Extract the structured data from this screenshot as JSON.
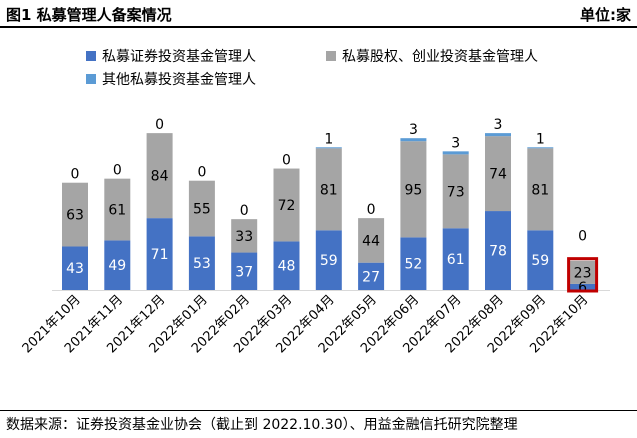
{
  "header": {
    "title": "图1 私募管理人备案情况",
    "unit": "单位:家"
  },
  "footer": {
    "source": "数据来源：证券投资基金业协会（截止到 2022.10.30）、用益金融信托研究院整理"
  },
  "colors": {
    "securities": "#4472c4",
    "equity": "#a5a5a5",
    "other": "#5b9bd5",
    "highlight": "#c00000"
  },
  "chart_data": {
    "type": "bar",
    "stacked": true,
    "categories": [
      "2021年10月",
      "2021年11月",
      "2021年12月",
      "2022年01月",
      "2022年02月",
      "2022年03月",
      "2022年04月",
      "2022年05月",
      "2022年06月",
      "2022年07月",
      "2022年08月",
      "2022年09月",
      "2022年10月"
    ],
    "series": [
      {
        "name": "私募证券投资基金管理人",
        "values": [
          43,
          49,
          71,
          53,
          37,
          48,
          59,
          27,
          52,
          61,
          78,
          59,
          6
        ]
      },
      {
        "name": "私募股权、创业投资基金管理人",
        "values": [
          63,
          61,
          84,
          55,
          33,
          72,
          81,
          44,
          95,
          73,
          74,
          81,
          23
        ]
      },
      {
        "name": "其他私募投资基金管理人",
        "values": [
          0,
          0,
          0,
          0,
          0,
          0,
          1,
          0,
          3,
          3,
          3,
          1,
          0
        ]
      }
    ],
    "highlighted_category": "2022年10月",
    "legend_position": "top",
    "grid": false,
    "ylim": [
      0,
      165
    ]
  }
}
